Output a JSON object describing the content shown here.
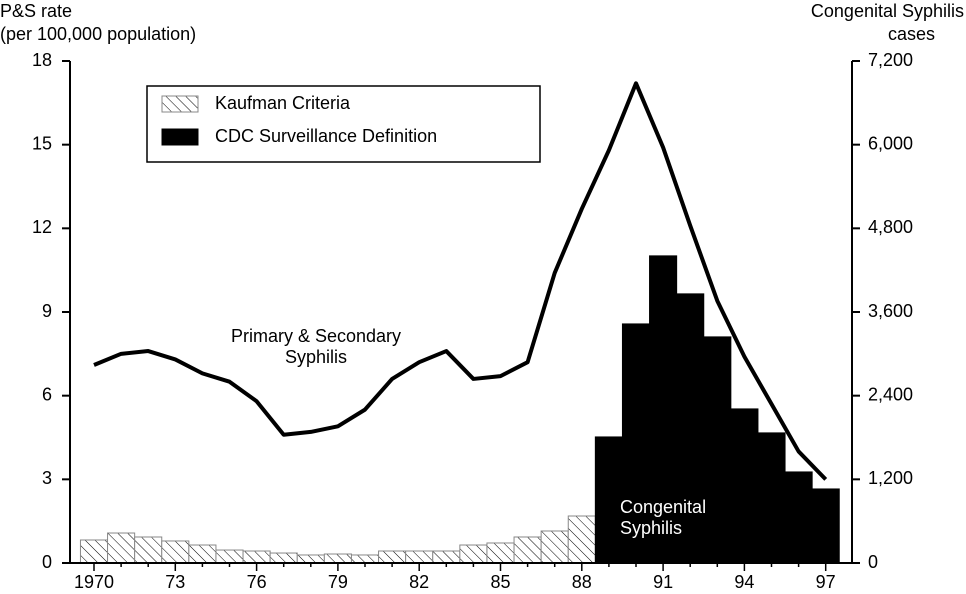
{
  "chart_data": {
    "type": "combo",
    "ylabel": [
      "P&S rate",
      "(per 100,000 population)"
    ],
    "y2label": [
      "Congenital Syphilis",
      "cases"
    ],
    "categories": [
      "1970",
      null,
      null,
      "73",
      null,
      null,
      "76",
      null,
      null,
      "79",
      null,
      null,
      "82",
      null,
      null,
      "85",
      null,
      null,
      "88",
      null,
      null,
      "91",
      null,
      null,
      "94",
      null,
      null,
      "97"
    ],
    "ylim": [
      0,
      18
    ],
    "yticks": [
      0,
      3,
      6,
      9,
      12,
      15,
      18
    ],
    "y2lim": [
      0,
      7200
    ],
    "y2ticks": [
      0,
      {
        "value": 1200,
        "label": "1,200"
      },
      {
        "value": 2400,
        "label": "2,400"
      },
      {
        "value": 3600,
        "label": "3,600"
      },
      {
        "value": 4800,
        "label": "4,800"
      },
      {
        "value": 6000,
        "label": "6,000"
      },
      {
        "value": 7200,
        "label": "7,200"
      }
    ],
    "legend": "upper left",
    "series": [
      {
        "name": "Kaufman Criteria",
        "type": "bar",
        "axis": "y2",
        "color": "#000000",
        "hatch": true,
        "values": [
          330,
          430,
          373,
          316,
          258,
          186,
          172,
          143,
          115,
          129,
          115,
          172,
          172,
          172,
          258,
          287,
          373,
          459,
          674,
          null,
          null,
          null,
          null,
          null,
          null,
          null,
          null,
          null
        ]
      },
      {
        "name": "CDC Surveillance Definition",
        "type": "bar",
        "axis": "y2",
        "color": "#000000",
        "hatch": false,
        "values": [
          null,
          null,
          null,
          null,
          null,
          null,
          null,
          null,
          null,
          null,
          null,
          null,
          null,
          null,
          null,
          null,
          null,
          null,
          null,
          1808,
          3429,
          4405,
          3860,
          3243,
          2210,
          1866,
          1306,
          1062
        ]
      },
      {
        "type": "line",
        "axis": "y",
        "color": "#000000",
        "values": [
          7.1,
          7.5,
          7.6,
          7.3,
          6.8,
          6.5,
          5.8,
          4.6,
          4.7,
          4.9,
          5.5,
          6.6,
          7.2,
          7.6,
          6.6,
          6.7,
          7.2,
          10.4,
          12.7,
          14.8,
          17.2,
          14.9,
          12.1,
          9.4,
          7.4,
          5.7,
          4.0,
          3.0
        ]
      }
    ],
    "annotations": [
      {
        "lines": [
          "Primary & Secondary",
          "Syphilis"
        ]
      },
      {
        "lines": [
          "Congenital",
          "Syphilis"
        ]
      }
    ]
  }
}
